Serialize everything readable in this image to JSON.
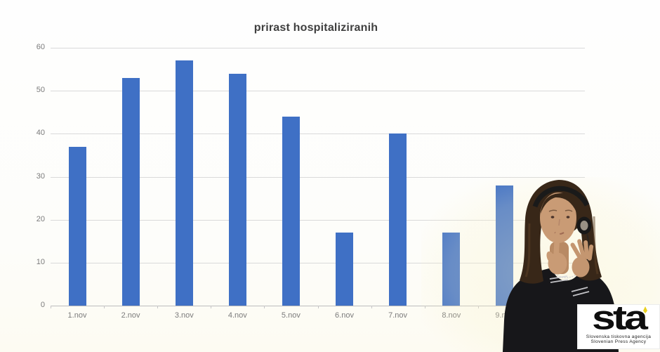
{
  "chart_data": {
    "type": "bar",
    "title": "prirast hospitaliziranih",
    "categories": [
      "1.nov",
      "2.nov",
      "3.nov",
      "4.nov",
      "5.nov",
      "6.nov",
      "7.nov",
      "8.nov",
      "9.nov"
    ],
    "values": [
      37,
      53,
      57,
      54,
      44,
      17,
      40,
      17,
      28
    ],
    "xlabel": "",
    "ylabel": "",
    "ylim": [
      0,
      60
    ],
    "yticks": [
      0,
      10,
      20,
      30,
      40,
      50,
      60
    ],
    "grid": "horizontal",
    "legend": "none",
    "bar_color": "#3f70c5"
  },
  "colors": {
    "bar": "#3f70c5",
    "gridline": "#dadada",
    "axis_line": "#bdbdbd",
    "tick_text": "#7b7b7b",
    "title_text": "#3f3f3f",
    "sta_accent": "#e9d01f"
  },
  "sta_logo": {
    "wordmark": "sta",
    "tagline_sl": "Slovenska tiskovna agencija",
    "tagline_en": "Slovenian Press Agency"
  }
}
